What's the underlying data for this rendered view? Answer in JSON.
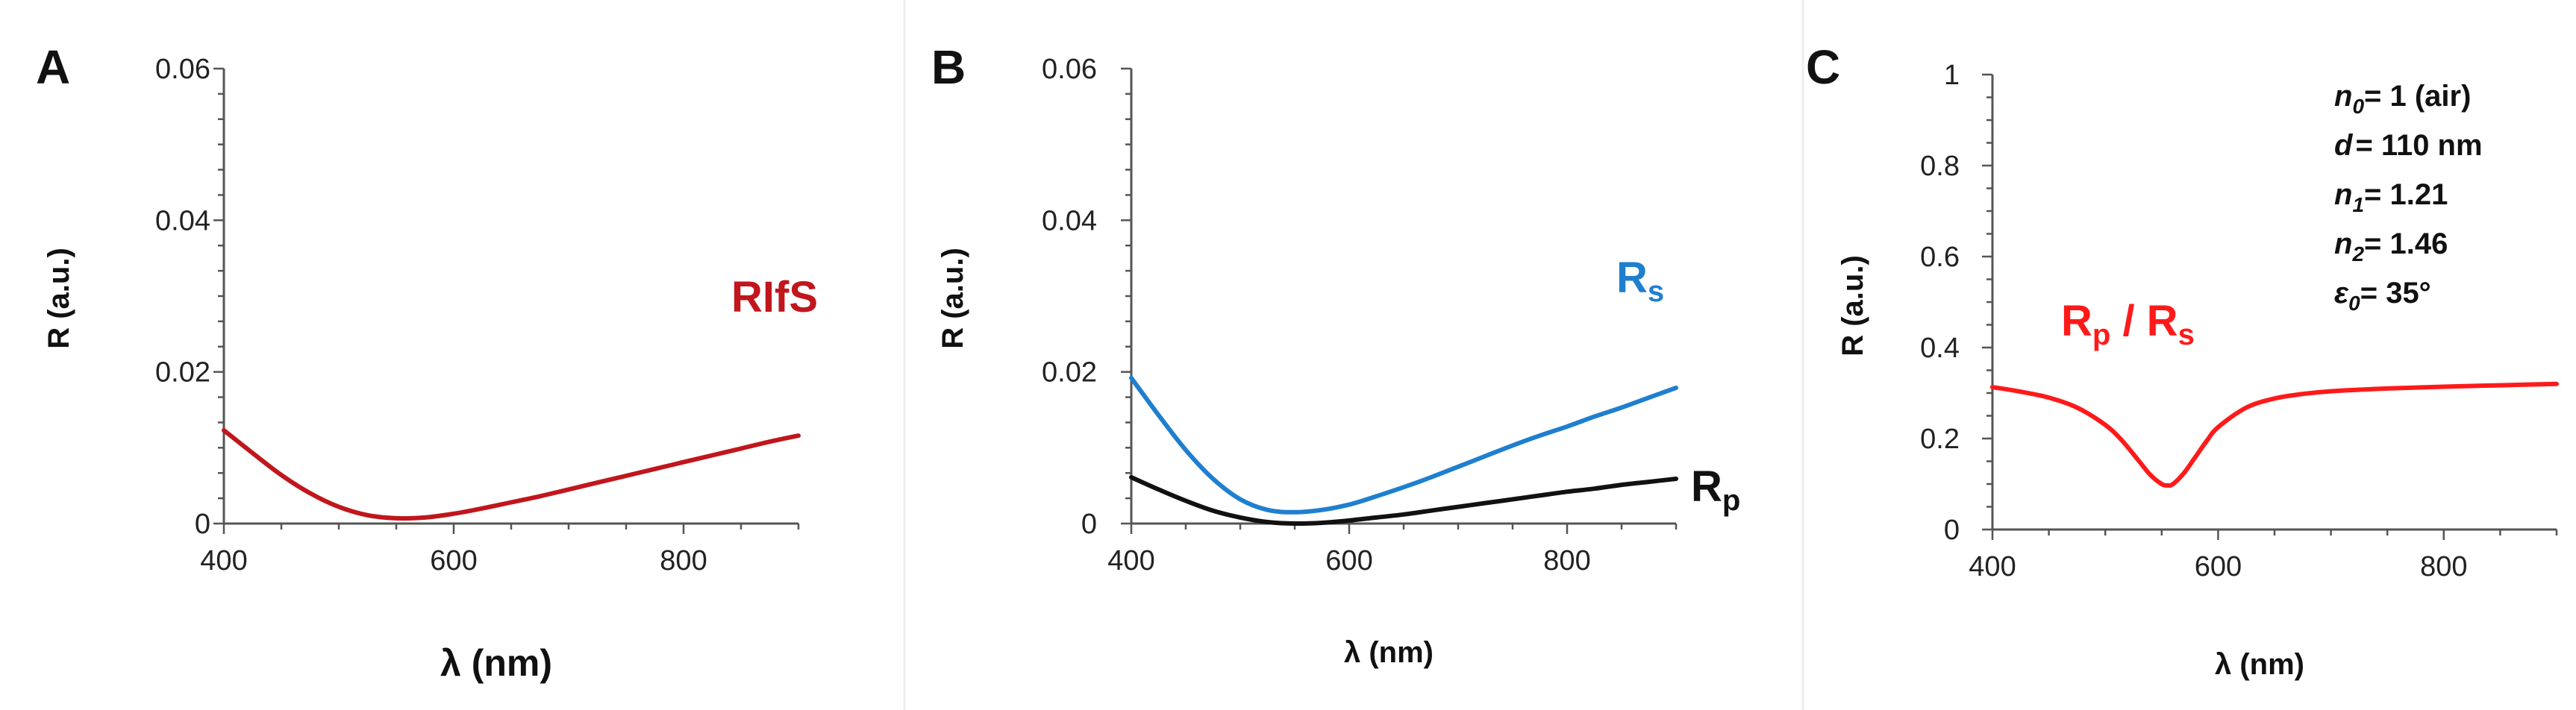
{
  "colors": {
    "rifs": "#c0161c",
    "rs": "#1f7fcf",
    "rp": "#111111",
    "ratio": "#ff1a1a"
  },
  "panels": {
    "a": {
      "letter": "A"
    },
    "b": {
      "letter": "B"
    },
    "c": {
      "letter": "C",
      "params": [
        {
          "symbol": "n",
          "sub": "0",
          "value": "= 1 (air)",
          "color": "#111111"
        },
        {
          "symbol": "d",
          "sub": "",
          "value": "= 110 nm",
          "color": "#111111"
        },
        {
          "symbol": "n",
          "sub": "1",
          "value": "= 1.21",
          "color": "#111111"
        },
        {
          "symbol": "n",
          "sub": "2",
          "value": "= 1.46",
          "color": "#111111"
        },
        {
          "symbol": "ε",
          "sub": "0",
          "value": "= 35°",
          "color": "#ff1a1a"
        }
      ]
    }
  },
  "chart_data": [
    {
      "type": "line",
      "panel": "A",
      "xlabel": "λ (nm)",
      "ylabel": "R (a.u.)",
      "xlim": [
        400,
        900
      ],
      "ylim": [
        0,
        0.06
      ],
      "xticks": [
        400,
        600,
        800
      ],
      "xtick_labels": [
        "400",
        "600",
        "800"
      ],
      "yticks": [
        0,
        0.02,
        0.04,
        0.06
      ],
      "ytick_labels": [
        "0",
        "0.02",
        "0.04",
        "0.06"
      ],
      "series": [
        {
          "name": "RIfS",
          "color": "#c0161c",
          "x": [
            400,
            425,
            450,
            475,
            500,
            525,
            550,
            575,
            600,
            625,
            650,
            675,
            700,
            725,
            750,
            775,
            800,
            825,
            850,
            875,
            900
          ],
          "y": [
            0.0123,
            0.0093,
            0.0064,
            0.004,
            0.0022,
            0.0011,
            0.0007,
            0.0008,
            0.0013,
            0.002,
            0.0028,
            0.0036,
            0.0045,
            0.0054,
            0.0063,
            0.0072,
            0.0081,
            0.009,
            0.0099,
            0.0108,
            0.0116
          ]
        }
      ],
      "annotations": [
        {
          "text": "RIfS"
        }
      ]
    },
    {
      "type": "line",
      "panel": "B",
      "xlabel": "λ (nm)",
      "ylabel": "R (a.u.)",
      "xlim": [
        400,
        900
      ],
      "ylim": [
        0,
        0.06
      ],
      "xticks": [
        400,
        600,
        800
      ],
      "xtick_labels": [
        "400",
        "600",
        "800"
      ],
      "yticks": [
        0,
        0.02,
        0.04,
        0.06
      ],
      "ytick_labels": [
        "0",
        "0.02",
        "0.04",
        "0.06"
      ],
      "series": [
        {
          "name": "Rs",
          "color": "#1f7fcf",
          "x": [
            400,
            425,
            450,
            475,
            500,
            525,
            550,
            575,
            600,
            625,
            650,
            675,
            700,
            725,
            750,
            775,
            800,
            825,
            850,
            875,
            900
          ],
          "y": [
            0.0192,
            0.0143,
            0.0097,
            0.0059,
            0.0032,
            0.0018,
            0.0015,
            0.0018,
            0.0025,
            0.0036,
            0.0048,
            0.0061,
            0.0075,
            0.0089,
            0.0103,
            0.0116,
            0.0128,
            0.0141,
            0.0153,
            0.0166,
            0.0179
          ]
        },
        {
          "name": "Rp",
          "color": "#111111",
          "x": [
            400,
            425,
            450,
            475,
            500,
            525,
            550,
            575,
            600,
            625,
            650,
            675,
            700,
            725,
            750,
            775,
            800,
            825,
            850,
            875,
            900
          ],
          "y": [
            0.0061,
            0.0045,
            0.003,
            0.0017,
            0.0008,
            0.0002,
            0.0,
            0.0001,
            0.0004,
            0.0008,
            0.0012,
            0.0017,
            0.0022,
            0.0027,
            0.0032,
            0.0037,
            0.0042,
            0.0046,
            0.0051,
            0.0055,
            0.0059
          ]
        }
      ],
      "annotations": [
        {
          "text": "R",
          "sub": "s",
          "series": "Rs"
        },
        {
          "text": "R",
          "sub": "p",
          "series": "Rp"
        }
      ]
    },
    {
      "type": "line",
      "panel": "C",
      "xlabel": "λ (nm)",
      "ylabel": "R (a.u.)",
      "xlim": [
        400,
        900
      ],
      "ylim": [
        0,
        1
      ],
      "xticks": [
        400,
        600,
        800
      ],
      "xtick_labels": [
        "400",
        "600",
        "800"
      ],
      "yticks": [
        0,
        0.2,
        0.4,
        0.6,
        0.8,
        1.0
      ],
      "ytick_labels": [
        "0",
        "0.2",
        "0.4",
        "0.6",
        "0.8",
        "1"
      ],
      "series": [
        {
          "name": "Rp / Rs",
          "color": "#ff1a1a",
          "x": [
            400,
            425,
            450,
            475,
            500,
            515,
            530,
            540,
            550,
            555,
            560,
            570,
            580,
            590,
            600,
            625,
            650,
            675,
            700,
            750,
            800,
            850,
            900
          ],
          "y": [
            0.313,
            0.303,
            0.29,
            0.268,
            0.23,
            0.195,
            0.15,
            0.12,
            0.1,
            0.097,
            0.1,
            0.125,
            0.16,
            0.195,
            0.225,
            0.268,
            0.288,
            0.298,
            0.304,
            0.31,
            0.314,
            0.317,
            0.32
          ]
        }
      ],
      "annotations": [
        {
          "text": "R",
          "sub": "p",
          "text2": " / R",
          "sub2": "s"
        }
      ]
    }
  ]
}
